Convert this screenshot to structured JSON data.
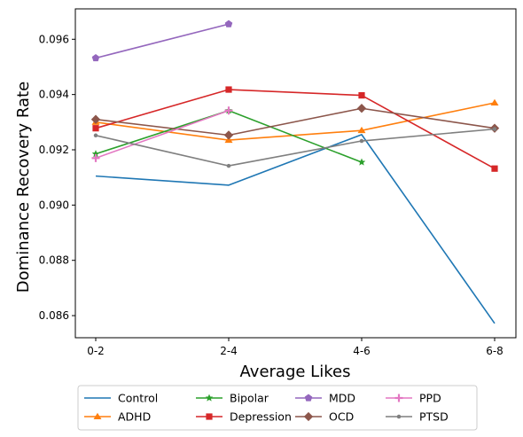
{
  "chart_data": {
    "type": "line",
    "xlabel": "Average Likes",
    "ylabel": "Dominance Recovery Rate",
    "categories": [
      "0-2",
      "2-4",
      "4-6",
      "6-8"
    ],
    "ylim": [
      0.0852,
      0.0971
    ],
    "yticks": [
      "0.086",
      "0.088",
      "0.090",
      "0.092",
      "0.094",
      "0.096"
    ],
    "ytick_values": [
      0.086,
      0.088,
      0.09,
      0.092,
      0.094,
      0.096
    ],
    "grid": false,
    "legend": {
      "placement": "bottom-center",
      "columns": 4
    },
    "series": [
      {
        "name": "Control",
        "color": "#1f77b4",
        "marker": "none",
        "values": [
          0.09105,
          0.09072,
          0.09255,
          0.08572
        ]
      },
      {
        "name": "ADHD",
        "color": "#ff7f0e",
        "marker": "triangle",
        "values": [
          0.093,
          0.09235,
          0.0927,
          0.0937
        ]
      },
      {
        "name": "Bipolar",
        "color": "#2ca02c",
        "marker": "star",
        "values": [
          0.09185,
          0.09342,
          0.09155,
          null
        ]
      },
      {
        "name": "Depression",
        "color": "#d62728",
        "marker": "square",
        "values": [
          0.09278,
          0.09418,
          0.09397,
          0.09132
        ]
      },
      {
        "name": "MDD",
        "color": "#9467bd",
        "marker": "pentagon",
        "values": [
          0.09532,
          0.09655,
          null,
          null
        ]
      },
      {
        "name": "OCD",
        "color": "#8c564b",
        "marker": "diamond",
        "values": [
          0.0931,
          0.09253,
          0.0935,
          0.09278
        ]
      },
      {
        "name": "PPD",
        "color": "#e377c2",
        "marker": "plus",
        "values": [
          0.0917,
          0.09342,
          null,
          null
        ]
      },
      {
        "name": "PTSD",
        "color": "#7f7f7f",
        "marker": "dot",
        "values": [
          0.09252,
          0.09142,
          0.09232,
          0.09275
        ]
      }
    ]
  }
}
